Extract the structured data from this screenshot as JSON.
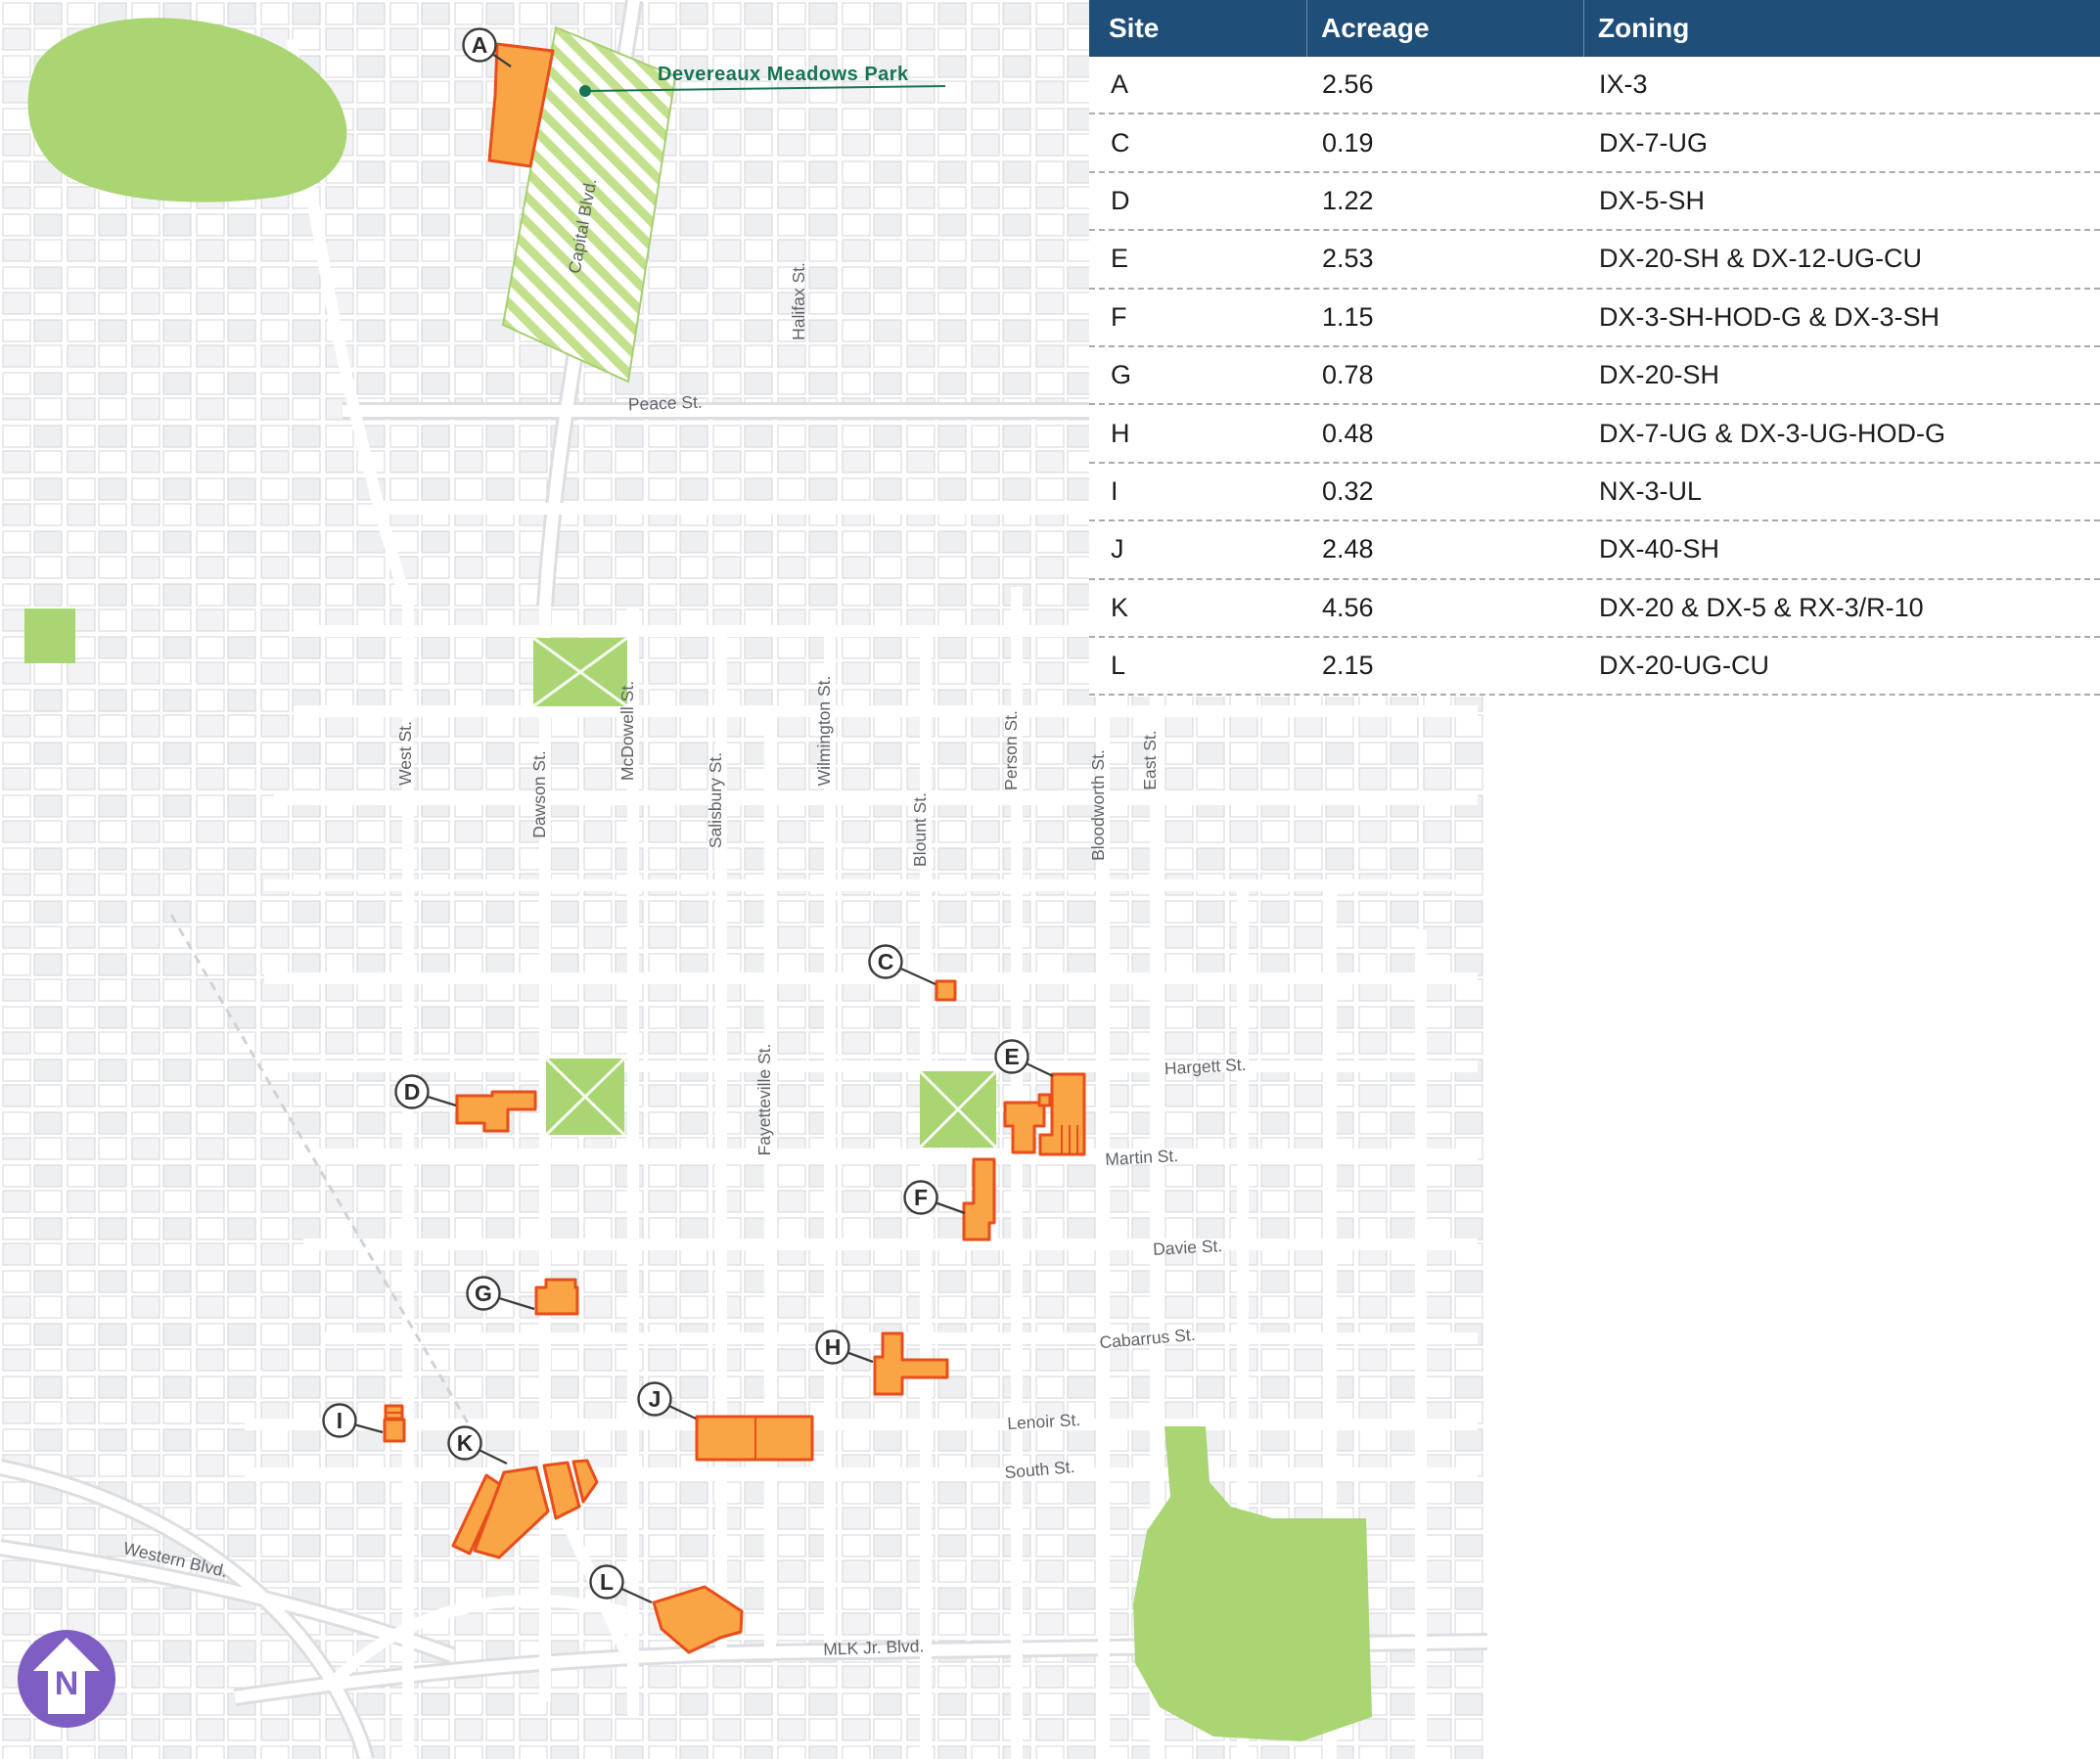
{
  "table": {
    "columns": [
      "Site",
      "Acreage",
      "Zoning"
    ],
    "rows": [
      {
        "site": "A",
        "acreage": "2.56",
        "zoning": "IX-3"
      },
      {
        "site": "C",
        "acreage": "0.19",
        "zoning": "DX-7-UG"
      },
      {
        "site": "D",
        "acreage": "1.22",
        "zoning": "DX-5-SH"
      },
      {
        "site": "E",
        "acreage": "2.53",
        "zoning": "DX-20-SH & DX-12-UG-CU"
      },
      {
        "site": "F",
        "acreage": "1.15",
        "zoning": "DX-3-SH-HOD-G & DX-3-SH"
      },
      {
        "site": "G",
        "acreage": "0.78",
        "zoning": "DX-20-SH"
      },
      {
        "site": "H",
        "acreage": "0.48",
        "zoning": "DX-7-UG & DX-3-UG-HOD-G"
      },
      {
        "site": "I",
        "acreage": "0.32",
        "zoning": "NX-3-UL"
      },
      {
        "site": "J",
        "acreage": "2.48",
        "zoning": "DX-40-SH"
      },
      {
        "site": "K",
        "acreage": "4.56",
        "zoning": "DX-20 & DX-5 & RX-3/R-10"
      },
      {
        "site": "L",
        "acreage": "2.15",
        "zoning": "DX-20-UG-CU"
      }
    ]
  },
  "map": {
    "park_callout": "Devereaux Meadows Park",
    "north_label": "N",
    "site_markers": [
      "A",
      "C",
      "D",
      "E",
      "F",
      "G",
      "H",
      "I",
      "J",
      "K",
      "L"
    ],
    "street_labels": [
      "Capital Blvd.",
      "Halifax St.",
      "Peace St.",
      "West St.",
      "Dawson St.",
      "McDowell St.",
      "Salisbury St.",
      "Wilmington St.",
      "Fayetteville St.",
      "Blount St.",
      "Person St.",
      "Bloodworth St.",
      "East St.",
      "Hargett St.",
      "Martin St.",
      "Davie St.",
      "Cabarrus St.",
      "Lenoir St.",
      "South St.",
      "MLK Jr. Blvd.",
      "Western Blvd."
    ]
  },
  "colors": {
    "table_header_bg": "#1F4E79",
    "site_fill": "#F9A445",
    "site_stroke": "#E84E1B",
    "park_green": "#A9D573",
    "park_label": "#177455",
    "north_badge": "#7E5EC2"
  }
}
